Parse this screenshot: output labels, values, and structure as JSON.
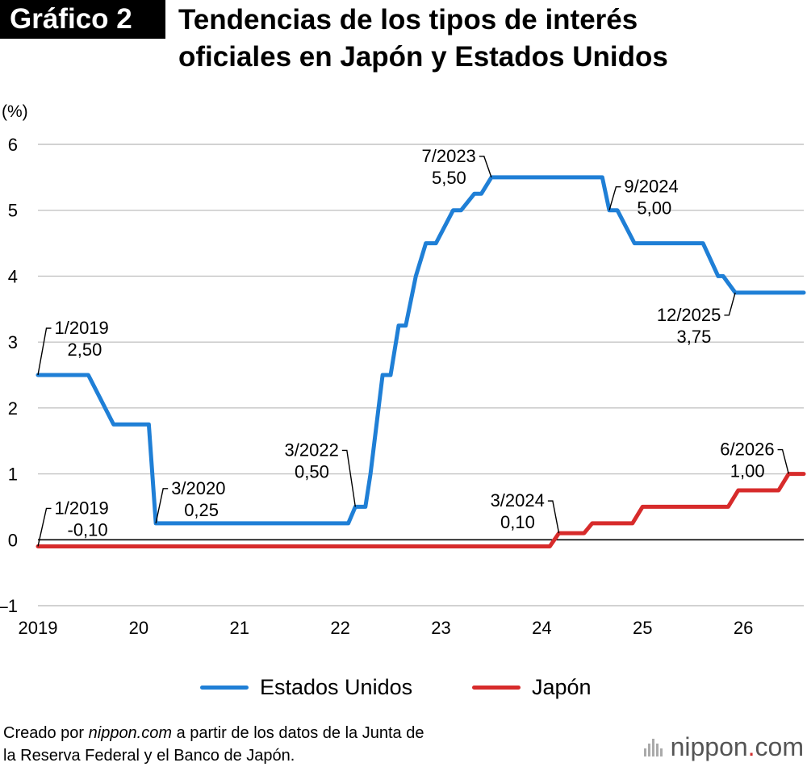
{
  "header": {
    "badge": "Gráfico 2",
    "title_line1": "Tendencias de los tipos de interés",
    "title_line2": "oficiales en Japón y Estados Unidos"
  },
  "chart_data": {
    "type": "line",
    "ylabel": "(%)",
    "ylim": [
      -1,
      6
    ],
    "yticks": [
      "6",
      "5",
      "4",
      "3",
      "2",
      "1",
      "0",
      "–1"
    ],
    "xlim": [
      2019.0,
      2026.6
    ],
    "xticks": [
      {
        "label": "2019",
        "value": 2019
      },
      {
        "label": "20",
        "value": 2020
      },
      {
        "label": "21",
        "value": 2021
      },
      {
        "label": "22",
        "value": 2022
      },
      {
        "label": "23",
        "value": 2023
      },
      {
        "label": "24",
        "value": 2024
      },
      {
        "label": "25",
        "value": 2025
      },
      {
        "label": "26",
        "value": 2026
      }
    ],
    "grid": true,
    "series": [
      {
        "name": "Estados Unidos",
        "color": "#1f7fd6",
        "points": [
          [
            2019.0,
            2.5
          ],
          [
            2019.5,
            2.5
          ],
          [
            2019.75,
            1.75
          ],
          [
            2020.1,
            1.75
          ],
          [
            2020.17,
            0.25
          ],
          [
            2022.08,
            0.25
          ],
          [
            2022.15,
            0.5
          ],
          [
            2022.25,
            0.5
          ],
          [
            2022.3,
            1.0
          ],
          [
            2022.42,
            2.5
          ],
          [
            2022.5,
            2.5
          ],
          [
            2022.58,
            3.25
          ],
          [
            2022.65,
            3.25
          ],
          [
            2022.75,
            4.0
          ],
          [
            2022.85,
            4.5
          ],
          [
            2022.95,
            4.5
          ],
          [
            2023.12,
            5.0
          ],
          [
            2023.2,
            5.0
          ],
          [
            2023.33,
            5.25
          ],
          [
            2023.4,
            5.25
          ],
          [
            2023.5,
            5.5
          ],
          [
            2024.6,
            5.5
          ],
          [
            2024.67,
            5.0
          ],
          [
            2024.75,
            5.0
          ],
          [
            2024.92,
            4.5
          ],
          [
            2025.6,
            4.5
          ],
          [
            2025.75,
            4.0
          ],
          [
            2025.8,
            4.0
          ],
          [
            2025.92,
            3.75
          ],
          [
            2026.6,
            3.75
          ]
        ]
      },
      {
        "name": "Japón",
        "color": "#d72b2b",
        "points": [
          [
            2019.0,
            -0.1
          ],
          [
            2024.08,
            -0.1
          ],
          [
            2024.17,
            0.1
          ],
          [
            2024.42,
            0.1
          ],
          [
            2024.5,
            0.25
          ],
          [
            2024.9,
            0.25
          ],
          [
            2025.0,
            0.5
          ],
          [
            2025.85,
            0.5
          ],
          [
            2025.95,
            0.75
          ],
          [
            2026.35,
            0.75
          ],
          [
            2026.45,
            1.0
          ],
          [
            2026.6,
            1.0
          ]
        ]
      }
    ],
    "annotations": [
      {
        "series": 0,
        "date": "1/2019",
        "value": "2,50",
        "x": 2019.0,
        "y": 2.5
      },
      {
        "series": 0,
        "date": "3/2020",
        "value": "0,25",
        "x": 2020.17,
        "y": 0.25
      },
      {
        "series": 0,
        "date": "3/2022",
        "value": "0,50",
        "x": 2022.15,
        "y": 0.5
      },
      {
        "series": 0,
        "date": "7/2023",
        "value": "5,50",
        "x": 2023.5,
        "y": 5.5
      },
      {
        "series": 0,
        "date": "9/2024",
        "value": "5,00",
        "x": 2024.67,
        "y": 5.0
      },
      {
        "series": 0,
        "date": "12/2025",
        "value": "3,75",
        "x": 2025.92,
        "y": 3.75
      },
      {
        "series": 1,
        "date": "1/2019",
        "value": "-0,10",
        "x": 2019.0,
        "y": -0.1
      },
      {
        "series": 1,
        "date": "3/2024",
        "value": "0,10",
        "x": 2024.17,
        "y": 0.1
      },
      {
        "series": 1,
        "date": "6/2026",
        "value": "1,00",
        "x": 2026.45,
        "y": 1.0
      }
    ]
  },
  "legend": {
    "us": "Estados Unidos",
    "jp": "Japón"
  },
  "footer": {
    "source_prefix": "Creado por ",
    "source_site": "nippon.com",
    "source_line1_rest": " a partir de los datos de la Junta de",
    "source_line2": "la Reserva Federal y el Banco de Japón.",
    "logo_main": "nippon",
    "logo_dot": ".",
    "logo_com": "com"
  }
}
